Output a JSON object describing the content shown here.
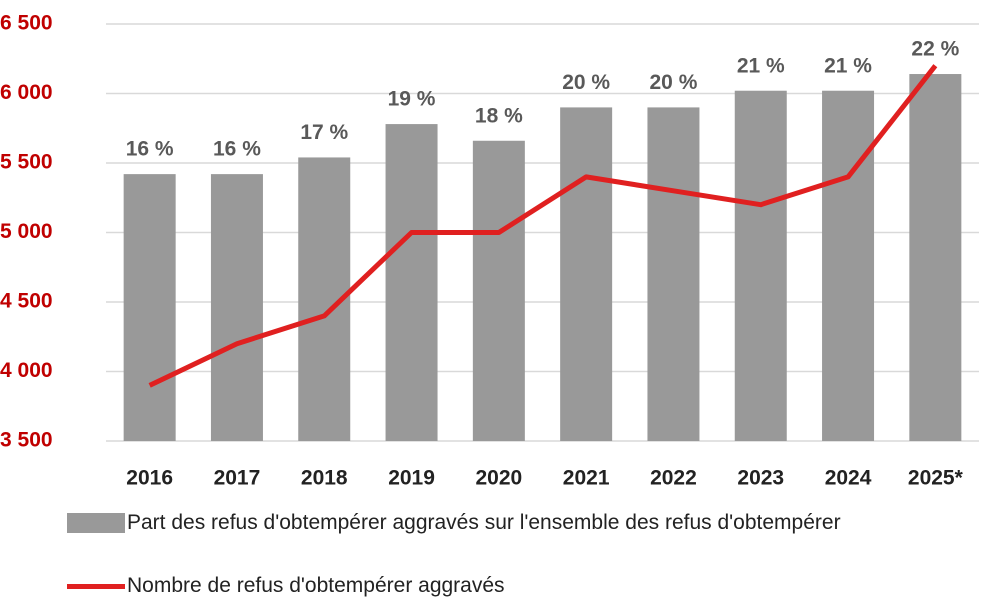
{
  "chart_data": {
    "type": "bar-line",
    "categories": [
      "2016",
      "2017",
      "2018",
      "2019",
      "2020",
      "2021",
      "2022",
      "2023",
      "2024",
      "2025*"
    ],
    "series": [
      {
        "name": "Part des refus d'obtempérer aggravés sur l'ensemble des refus d'obtempérer",
        "type": "bar",
        "axis": "y2",
        "color": "#999999",
        "values": [
          16,
          16,
          17,
          19,
          18,
          20,
          20,
          21,
          21,
          22
        ],
        "value_labels": [
          "16 %",
          "16 %",
          "17 %",
          "19 %",
          "18 %",
          "20 %",
          "20 %",
          "21 %",
          "21 %",
          "22 %"
        ]
      },
      {
        "name": "Nombre de refus d'obtempérer aggravés",
        "type": "line",
        "color": "#e02020",
        "values": [
          3900,
          4200,
          4400,
          5000,
          5000,
          5400,
          5300,
          5200,
          5400,
          6200
        ]
      }
    ],
    "ylim": [
      3500,
      6500
    ],
    "yticks": [
      {
        "value": 3500,
        "label": "3 500"
      },
      {
        "value": 4000,
        "label": "4 000"
      },
      {
        "value": 4500,
        "label": "4 500"
      },
      {
        "value": 5000,
        "label": "5 000"
      },
      {
        "value": 5500,
        "label": "5 500"
      },
      {
        "value": 6000,
        "label": "6 000"
      },
      {
        "value": 6500,
        "label": "6 500"
      }
    ],
    "y2lim": [
      0,
      25
    ],
    "grid": true
  }
}
